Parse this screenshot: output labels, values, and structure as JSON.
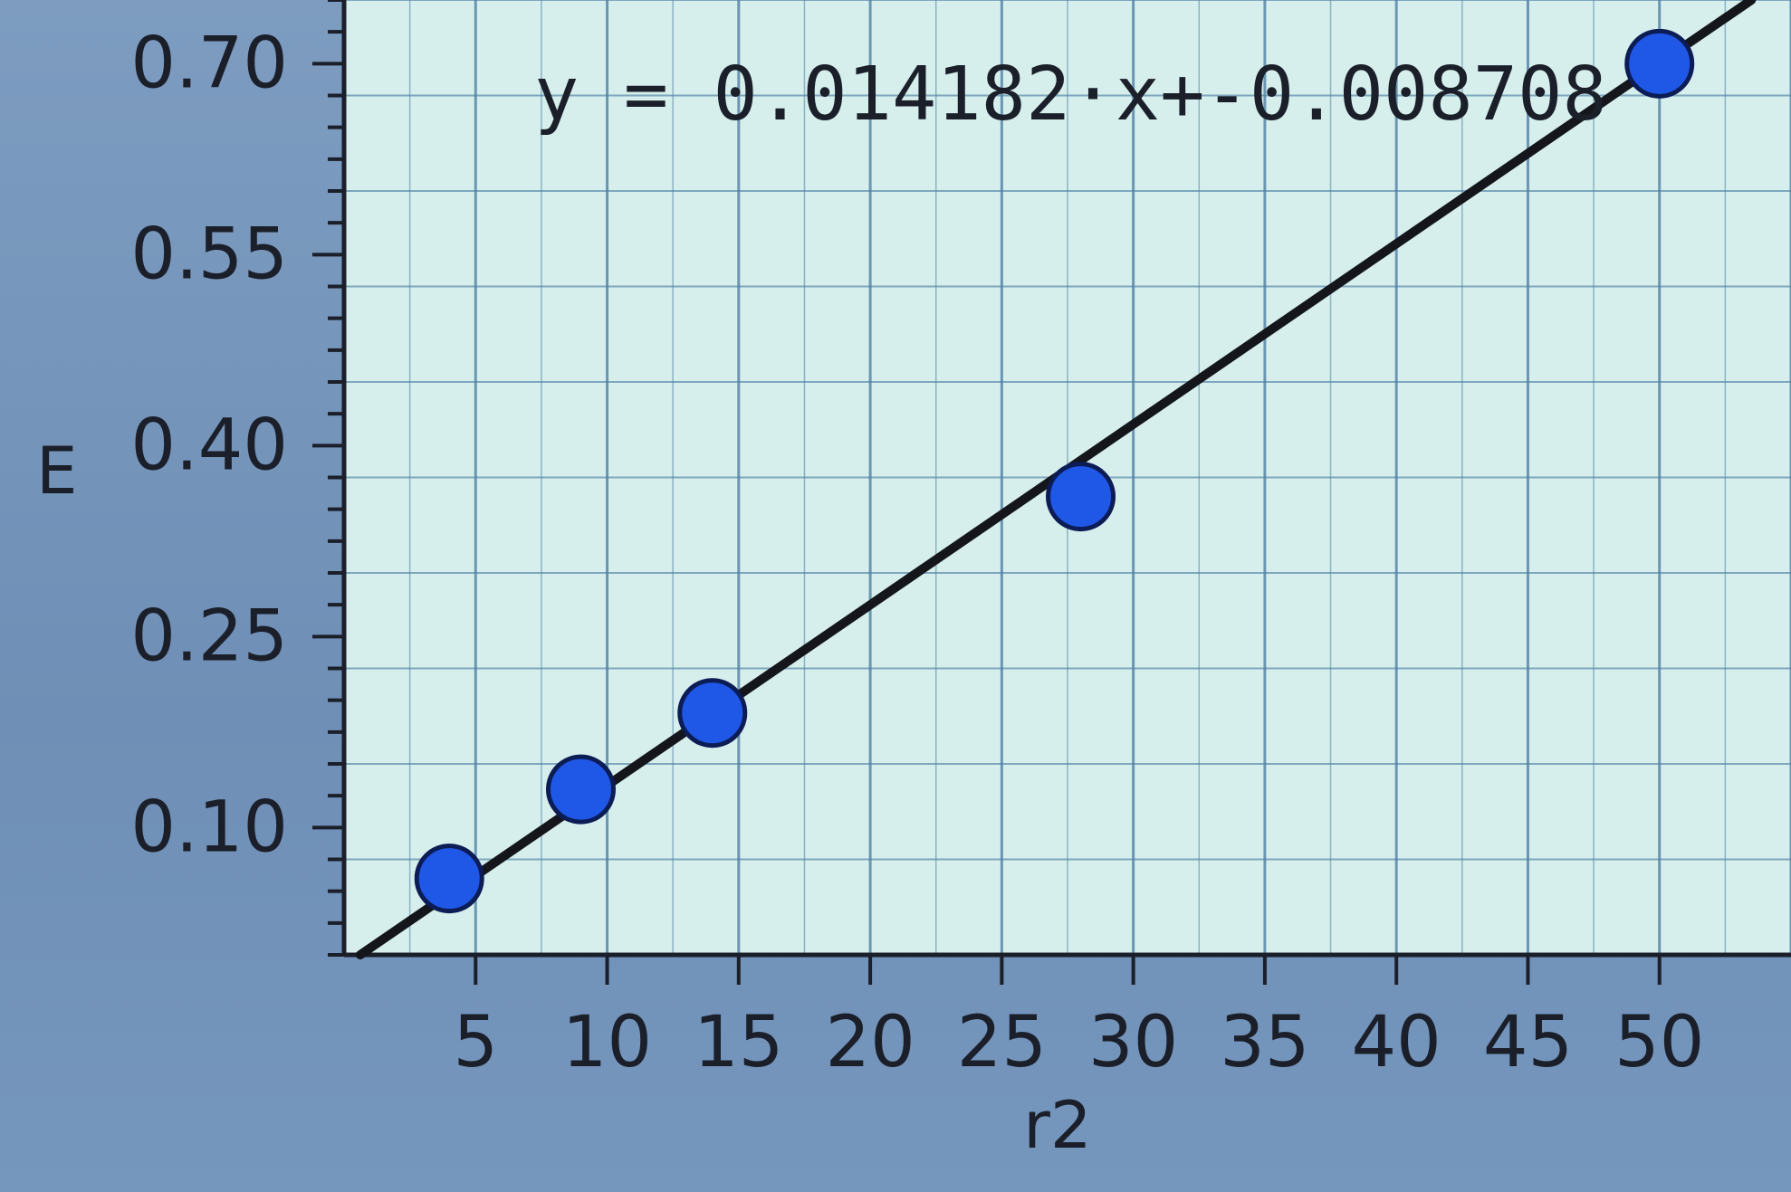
{
  "chart_data": {
    "type": "scatter",
    "xlabel": "r2",
    "ylabel": "E",
    "xlim": [
      0,
      55
    ],
    "ylim": [
      0,
      0.75
    ],
    "x_ticks": [
      5,
      10,
      15,
      20,
      25,
      30,
      35,
      40,
      45,
      50
    ],
    "y_ticks": [
      0.1,
      0.25,
      0.4,
      0.55,
      0.7
    ],
    "x_tick_labels": [
      "5",
      "10",
      "15",
      "20",
      "25",
      "30",
      "35",
      "40",
      "45",
      "50"
    ],
    "y_tick_labels": [
      "0.10",
      "0.25",
      "0.40",
      "0.55",
      "0.70"
    ],
    "grid": true,
    "points": [
      {
        "x": 4,
        "y": 0.06
      },
      {
        "x": 9,
        "y": 0.13
      },
      {
        "x": 14,
        "y": 0.19
      },
      {
        "x": 28,
        "y": 0.36
      },
      {
        "x": 50,
        "y": 0.7
      }
    ],
    "fit": {
      "slope": 0.014182,
      "intercept": -0.008708
    },
    "equation": "y = 0.014182·x+-0.008708"
  },
  "colors": {
    "plot_background": "#d6efec",
    "grid": "#4f7fa5",
    "point_fill": "#1f57e6",
    "point_stroke": "#0c1c55",
    "fit_line": "#14161c"
  }
}
